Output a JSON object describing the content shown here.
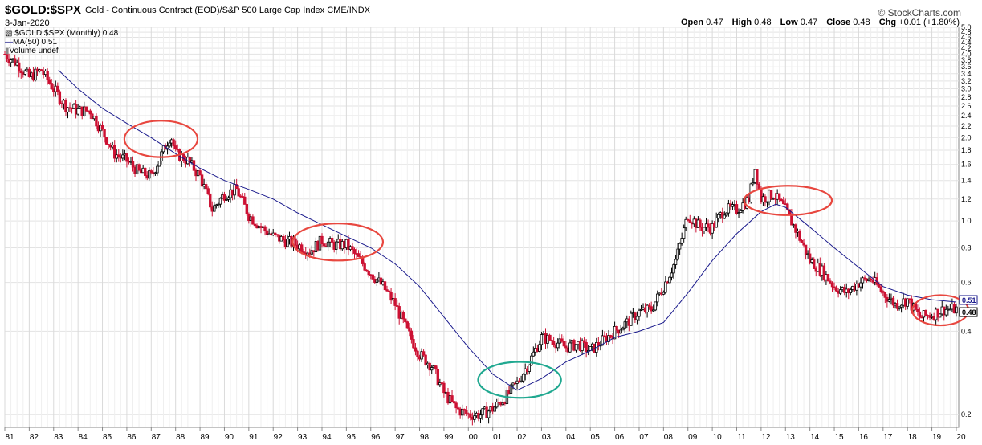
{
  "header": {
    "ticker": "$GOLD:$SPX",
    "subtitle": "Gold - Continuous Contract (EOD)/S&P 500 Large Cap Index  CME/INDX",
    "date": "3-Jan-2020",
    "brand": "© StockCharts.com",
    "ohlc": {
      "open_label": "Open",
      "open": "0.47",
      "high_label": "High",
      "high": "0.48",
      "low_label": "Low",
      "low": "0.47",
      "close_label": "Close",
      "close": "0.48",
      "chg_label": "Chg",
      "chg": "+0.01 (+1.80%)"
    }
  },
  "legend": {
    "price": "$GOLD:$SPX (Monthly) 0.48",
    "ma": "MA(50) 0.51",
    "volume": "Volume undef"
  },
  "colors": {
    "up": "#000000",
    "down": "#cc1133",
    "ma": "#1a1a8c",
    "circle_red": "#e8473f",
    "circle_teal": "#20a890",
    "grid": "#e3e3e3"
  },
  "chart_data": {
    "type": "line",
    "scale": "log",
    "ylim": [
      0.18,
      5.0
    ],
    "xlim": [
      1981.0,
      2020.1
    ],
    "y_ticks": [
      0.2,
      0.4,
      0.6,
      0.8,
      1.0,
      1.2,
      1.4,
      1.6,
      1.8,
      2.0,
      2.2,
      2.4,
      2.6,
      2.8,
      3.0,
      3.2,
      3.4,
      3.6,
      3.8,
      4.0,
      4.2,
      4.4,
      4.6,
      4.8,
      5.0
    ],
    "y_tick_labels": [
      "0.2",
      "0.4",
      "0.6",
      "0.8",
      "1.0",
      "1.2",
      "1.4",
      "1.6",
      "1.8",
      "2.0",
      "2.2",
      "2.4",
      "2.6",
      "2.8",
      "3.0",
      "3.2",
      "3.4",
      "3.6",
      "3.8",
      "4.0",
      "4.2",
      "4.4",
      "4.6",
      "4.8",
      "5.0"
    ],
    "x_ticks": [
      1981,
      1982,
      1983,
      1984,
      1985,
      1986,
      1987,
      1988,
      1989,
      1990,
      1991,
      1992,
      1993,
      1994,
      1995,
      1996,
      1997,
      1998,
      1999,
      2000,
      2001,
      2002,
      2003,
      2004,
      2005,
      2006,
      2007,
      2008,
      2009,
      2010,
      2011,
      2012,
      2013,
      2014,
      2015,
      2016,
      2017,
      2018,
      2019,
      2020
    ],
    "x_tick_labels": [
      "81",
      "82",
      "83",
      "84",
      "85",
      "86",
      "87",
      "88",
      "89",
      "90",
      "91",
      "92",
      "93",
      "94",
      "95",
      "96",
      "97",
      "98",
      "99",
      "00",
      "01",
      "02",
      "03",
      "04",
      "05",
      "06",
      "07",
      "08",
      "09",
      "10",
      "11",
      "12",
      "13",
      "14",
      "15",
      "16",
      "17",
      "18",
      "19",
      "20"
    ],
    "series": [
      {
        "name": "$GOLD:$SPX (Monthly)",
        "kind": "price",
        "x": [
          1981.0,
          1981.5,
          1982.0,
          1982.5,
          1983.0,
          1983.5,
          1984.0,
          1984.5,
          1985.0,
          1985.5,
          1986.0,
          1986.5,
          1987.0,
          1987.5,
          1987.8,
          1988.0,
          1988.5,
          1989.0,
          1989.5,
          1990.0,
          1990.5,
          1991.0,
          1991.5,
          1992.0,
          1992.5,
          1993.0,
          1993.5,
          1994.0,
          1994.5,
          1995.0,
          1995.5,
          1996.0,
          1996.5,
          1997.0,
          1997.5,
          1998.0,
          1998.5,
          1999.0,
          1999.5,
          2000.0,
          2000.5,
          2001.0,
          2001.5,
          2002.0,
          2002.5,
          2003.0,
          2003.5,
          2004.0,
          2004.5,
          2005.0,
          2005.5,
          2006.0,
          2006.5,
          2007.0,
          2007.5,
          2008.0,
          2008.5,
          2009.0,
          2009.5,
          2010.0,
          2010.5,
          2011.0,
          2011.5,
          2011.75,
          2012.0,
          2012.5,
          2013.0,
          2013.5,
          2014.0,
          2014.5,
          2015.0,
          2015.5,
          2016.0,
          2016.5,
          2017.0,
          2017.5,
          2018.0,
          2018.5,
          2019.0,
          2019.5,
          2020.0
        ],
        "y": [
          4.0,
          3.7,
          3.3,
          3.5,
          3.0,
          2.6,
          2.5,
          2.5,
          2.1,
          1.75,
          1.65,
          1.5,
          1.45,
          1.8,
          2.05,
          1.75,
          1.65,
          1.45,
          1.1,
          1.25,
          1.3,
          1.05,
          0.95,
          0.88,
          0.85,
          0.82,
          0.78,
          0.85,
          0.82,
          0.82,
          0.73,
          0.65,
          0.58,
          0.5,
          0.4,
          0.33,
          0.3,
          0.24,
          0.21,
          0.2,
          0.2,
          0.21,
          0.23,
          0.26,
          0.31,
          0.38,
          0.37,
          0.35,
          0.36,
          0.34,
          0.37,
          0.4,
          0.43,
          0.47,
          0.48,
          0.58,
          0.72,
          1.05,
          0.95,
          0.95,
          1.1,
          1.1,
          1.2,
          1.55,
          1.2,
          1.25,
          1.1,
          0.9,
          0.72,
          0.66,
          0.58,
          0.55,
          0.6,
          0.62,
          0.55,
          0.5,
          0.52,
          0.45,
          0.46,
          0.48,
          0.48
        ]
      },
      {
        "name": "MA(50)",
        "kind": "ma",
        "x": [
          1983.2,
          1984.0,
          1985.0,
          1986.0,
          1987.0,
          1988.0,
          1989.0,
          1990.0,
          1991.0,
          1992.0,
          1993.0,
          1994.0,
          1995.0,
          1996.0,
          1997.0,
          1998.0,
          1999.0,
          2000.0,
          2001.0,
          2002.0,
          2003.0,
          2004.0,
          2005.0,
          2006.0,
          2007.0,
          2008.0,
          2009.0,
          2010.0,
          2011.0,
          2012.0,
          2012.6,
          2013.0,
          2014.0,
          2015.0,
          2016.0,
          2017.0,
          2018.0,
          2019.0,
          2020.0
        ],
        "y": [
          3.5,
          3.0,
          2.55,
          2.25,
          2.0,
          1.75,
          1.55,
          1.4,
          1.3,
          1.2,
          1.07,
          0.97,
          0.88,
          0.8,
          0.7,
          0.58,
          0.45,
          0.35,
          0.28,
          0.245,
          0.27,
          0.31,
          0.34,
          0.38,
          0.4,
          0.43,
          0.55,
          0.72,
          0.9,
          1.08,
          1.15,
          1.12,
          0.95,
          0.8,
          0.68,
          0.58,
          0.54,
          0.52,
          0.51
        ]
      }
    ],
    "current_labels": {
      "ma": "0.51",
      "close": "0.48"
    },
    "annotations": [
      {
        "shape": "ellipse",
        "color": "red",
        "x_range": [
          1985.9,
          1988.9
        ],
        "y_range": [
          1.7,
          2.3
        ]
      },
      {
        "shape": "ellipse",
        "color": "red",
        "x_range": [
          1992.8,
          1996.5
        ],
        "y_range": [
          0.72,
          0.98
        ]
      },
      {
        "shape": "ellipse",
        "color": "teal",
        "x_range": [
          2000.4,
          2003.8
        ],
        "y_range": [
          0.23,
          0.31
        ]
      },
      {
        "shape": "ellipse",
        "color": "red",
        "x_range": [
          2011.3,
          2014.9
        ],
        "y_range": [
          1.05,
          1.34
        ]
      },
      {
        "shape": "ellipse",
        "color": "red",
        "x_range": [
          2018.2,
          2020.5
        ],
        "y_range": [
          0.42,
          0.54
        ]
      }
    ]
  }
}
